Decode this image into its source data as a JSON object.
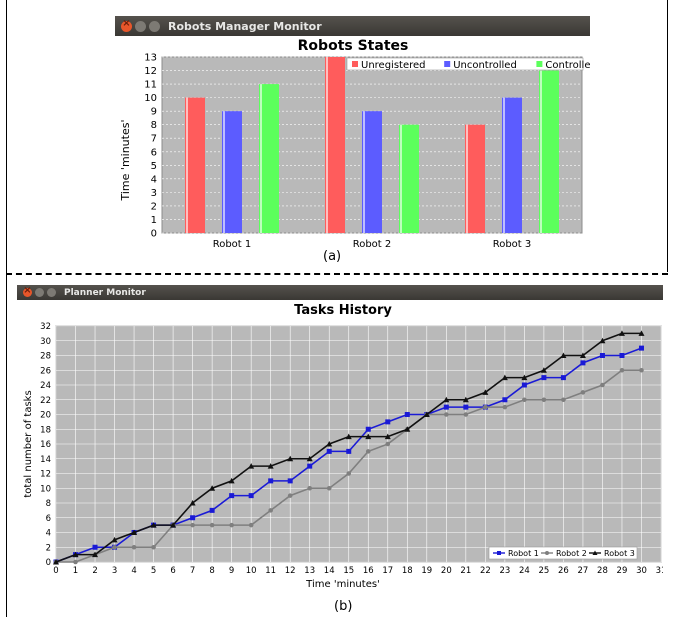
{
  "top_window": {
    "title": "Robots Manager Monitor"
  },
  "bottom_window": {
    "title": "Planner Monitor"
  },
  "captions": {
    "a": "(a)",
    "b": "(b)"
  },
  "chart_data": [
    {
      "type": "bar",
      "title": "Robots States",
      "ylabel": "Time 'minutes'",
      "xlabel": "",
      "categories": [
        "Robot 1",
        "Robot 2",
        "Robot 3"
      ],
      "series": [
        {
          "name": "Unregistered",
          "color": "#ff5c5c",
          "values": [
            10,
            13,
            8
          ]
        },
        {
          "name": "Uncontrolled",
          "color": "#5c5cff",
          "values": [
            9,
            9,
            10
          ]
        },
        {
          "name": "Controlled",
          "color": "#5cff5c",
          "values": [
            11,
            8,
            12
          ]
        }
      ],
      "ylim": [
        0,
        13
      ],
      "yticks": [
        0,
        1,
        2,
        3,
        4,
        5,
        6,
        7,
        8,
        9,
        10,
        11,
        12,
        13
      ],
      "legend": "top-right",
      "grid": true
    },
    {
      "type": "line",
      "title": "Tasks History",
      "xlabel": "Time 'minutes'",
      "ylabel": "total number of tasks",
      "x": [
        0,
        1,
        2,
        3,
        4,
        5,
        6,
        7,
        8,
        9,
        10,
        11,
        12,
        13,
        14,
        15,
        16,
        17,
        18,
        19,
        20,
        21,
        22,
        23,
        24,
        25,
        26,
        27,
        28,
        29,
        30
      ],
      "xticks": [
        0,
        1,
        2,
        3,
        4,
        5,
        6,
        7,
        8,
        9,
        10,
        11,
        12,
        13,
        14,
        15,
        16,
        17,
        18,
        19,
        20,
        21,
        22,
        23,
        24,
        25,
        26,
        27,
        28,
        29,
        30,
        31
      ],
      "yticks": [
        0,
        2,
        4,
        6,
        8,
        10,
        12,
        14,
        16,
        18,
        20,
        22,
        24,
        26,
        28,
        30,
        32
      ],
      "xlim": [
        0,
        31
      ],
      "ylim": [
        0,
        32
      ],
      "series": [
        {
          "name": "Robot 1",
          "color": "#1a1ad6",
          "marker": "square",
          "values": [
            0,
            1,
            2,
            2,
            4,
            5,
            5,
            6,
            7,
            9,
            9,
            11,
            11,
            13,
            15,
            15,
            18,
            19,
            20,
            20,
            21,
            21,
            21,
            22,
            24,
            25,
            25,
            27,
            28,
            28,
            29
          ]
        },
        {
          "name": "Robot 2",
          "color": "#7f7f7f",
          "marker": "circle",
          "values": [
            0,
            0,
            1,
            2,
            2,
            2,
            5,
            5,
            5,
            5,
            5,
            7,
            9,
            10,
            10,
            12,
            15,
            16,
            18,
            20,
            20,
            20,
            21,
            21,
            22,
            22,
            22,
            23,
            24,
            26,
            26
          ]
        },
        {
          "name": "Robot 3",
          "color": "#111111",
          "marker": "triangle",
          "values": [
            0,
            1,
            1,
            3,
            4,
            5,
            5,
            8,
            10,
            11,
            13,
            13,
            14,
            14,
            16,
            17,
            17,
            17,
            18,
            20,
            22,
            22,
            23,
            25,
            25,
            26,
            28,
            28,
            30,
            31,
            31
          ]
        }
      ],
      "legend": "bottom-right",
      "grid": true
    }
  ]
}
